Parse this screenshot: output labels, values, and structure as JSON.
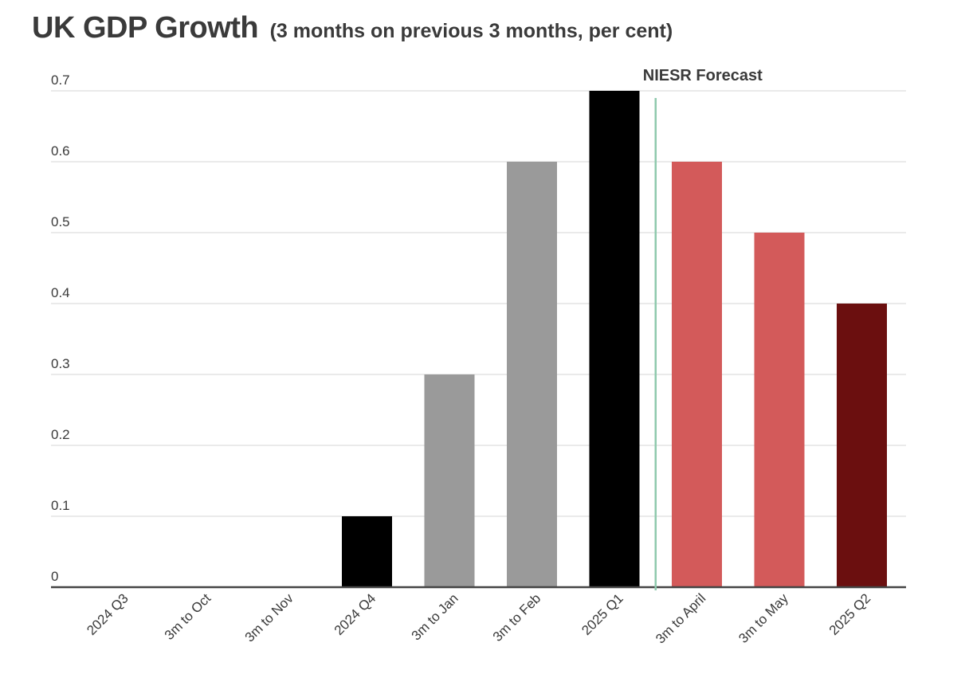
{
  "title": "UK GDP Growth",
  "subtitle": "(3 months on previous 3 months, per cent)",
  "chart_data": {
    "type": "bar",
    "categories": [
      "2024 Q3",
      "3m to Oct",
      "3m to Nov",
      "2024 Q4",
      "3m to Jan",
      "3m to Feb",
      "2025 Q1",
      "3m to April",
      "3m to May",
      "2025 Q2"
    ],
    "values": [
      0,
      0,
      0,
      0.1,
      0.3,
      0.6,
      0.7,
      0.6,
      0.5,
      0.4
    ],
    "bar_colors": [
      "#000000",
      "#9a9a9a",
      "#9a9a9a",
      "#000000",
      "#9a9a9a",
      "#9a9a9a",
      "#000000",
      "#d35a5a",
      "#d35a5a",
      "#6b0f0f"
    ],
    "ylim": [
      0,
      0.7
    ],
    "y_ticks": [
      "0",
      "0.1",
      "0.2",
      "0.3",
      "0.4",
      "0.5",
      "0.6",
      "0.7"
    ],
    "grid": true,
    "annotation": {
      "label": "NIESR Forecast",
      "position": "between 2025 Q1 and 3m to April",
      "line_color": "#8fc9ad"
    },
    "xlabel": "",
    "ylabel": ""
  }
}
